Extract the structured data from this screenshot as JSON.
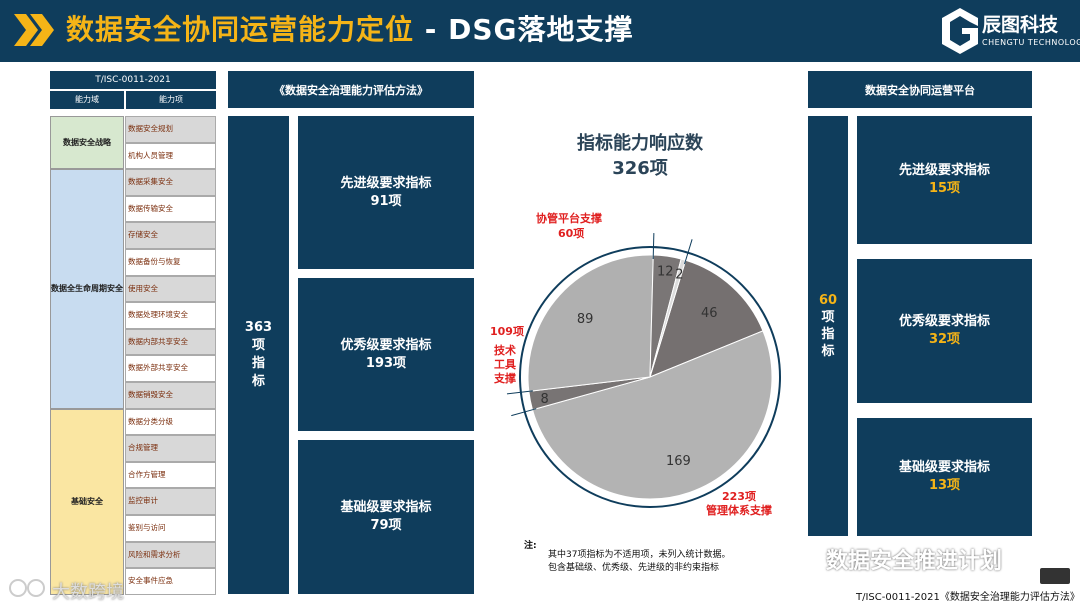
{
  "header": {
    "title_main": "数据安全协同运营能力定位",
    "title_rest": " - DSG落地支撑",
    "logo_cn": "辰图科技",
    "logo_en": "CHENGTU TECHNOLOGY"
  },
  "standard_table": {
    "code": "T/ISC-0011-2021",
    "col_domain": "能力域",
    "col_item": "能力项",
    "groups": [
      {
        "domain": "数据安全战略",
        "items": [
          "数据安全规划",
          "机构人员管理"
        ]
      },
      {
        "domain": "数据全生命周期安全",
        "items": [
          "数据采集安全",
          "数据传输安全",
          "存储安全",
          "数据备份与恢复",
          "使用安全",
          "数据处理环境安全",
          "数据内部共享安全",
          "数据外部共享安全",
          "数据销毁安全"
        ]
      },
      {
        "domain": "基础安全",
        "items": [
          "数据分类分级",
          "合规管理",
          "合作方管理",
          "监控审计",
          "鉴别与访问",
          "风险和需求分析",
          "安全事件应急"
        ]
      }
    ],
    "group_colors": [
      "#d7e8cf",
      "#c8dcf0",
      "#fae6a2"
    ]
  },
  "method": {
    "title": "《数据安全治理能力评估方法》",
    "total_line1": "363",
    "total_line2": "项",
    "total_line3": "指",
    "total_line4": "标",
    "levels": [
      {
        "name": "先进级要求指标",
        "count": "91项"
      },
      {
        "name": "优秀级要求指标",
        "count": "193项"
      },
      {
        "name": "基础级要求指标",
        "count": "79项"
      }
    ]
  },
  "chart_data": {
    "type": "pie",
    "title": "指标能力响应数",
    "subtitle": "326项",
    "slices": [
      {
        "value": 46,
        "label": "46",
        "color": "#757070"
      },
      {
        "value": 169,
        "label": "169",
        "color": "#b3b3b3"
      },
      {
        "value": 8,
        "label": "8",
        "color": "#787474"
      },
      {
        "value": 89,
        "label": "89",
        "color": "#b0b0b0"
      },
      {
        "value": 12,
        "label": "12",
        "color": "#7a7676"
      },
      {
        "value": 2,
        "label": "2",
        "color": "#dcdcdc"
      }
    ],
    "groups": [
      {
        "top": "协管平台支撑",
        "bottom": "60项"
      },
      {
        "top": "109项",
        "bottom": "技术 工具 支撑",
        "lines": [
          "技术",
          "工具",
          "支撑"
        ]
      },
      {
        "top": "223项",
        "bottom": "管理体系支撑"
      }
    ],
    "ring_color": "#0f3d5c"
  },
  "note": {
    "label": "注:",
    "line1": "其中37项指标为不适用项，未列入统计数据。",
    "line2": "包含基础级、优秀级、先进级的非约束指标"
  },
  "platform": {
    "title": "数据安全协同运营平台",
    "total_line1": "60",
    "total_line2": "项",
    "total_line3": "指",
    "total_line4": "标",
    "levels": [
      {
        "name": "先进级要求指标",
        "count": "15项"
      },
      {
        "name": "优秀级要求指标",
        "count": "32项"
      },
      {
        "name": "基础级要求指标",
        "count": "13项"
      }
    ]
  },
  "footer": {
    "standard": "T/ISC-0011-2021《数据安全治理能力评估方法》",
    "watermark_right": "数据安全推进计划",
    "watermark_left": "大数跨境"
  }
}
